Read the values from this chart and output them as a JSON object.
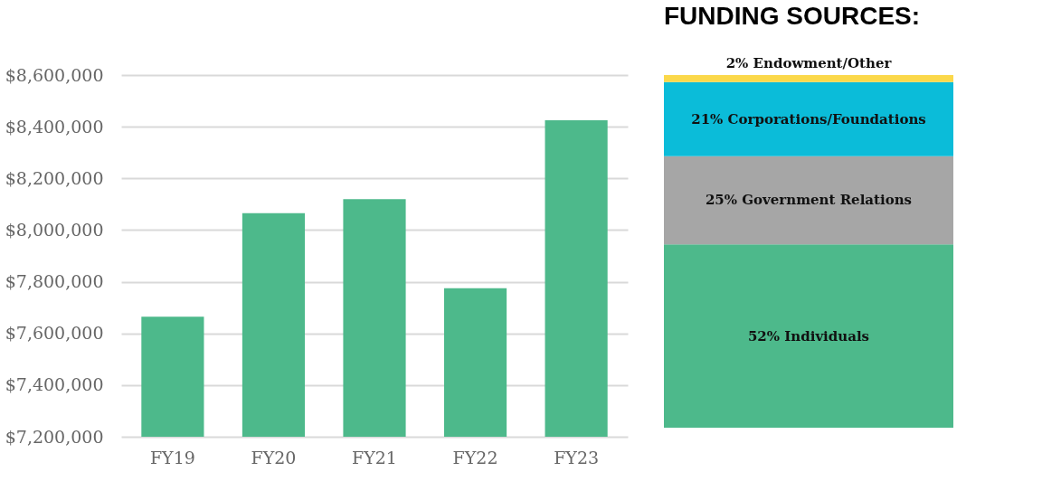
{
  "chart_data": [
    {
      "type": "bar",
      "categories": [
        "FY19",
        "FY20",
        "FY21",
        "FY22",
        "FY23"
      ],
      "values": [
        7665000,
        8065000,
        8120000,
        7775000,
        8425000
      ],
      "color": "#4db98b",
      "ylim": [
        7200000,
        8600000
      ],
      "yticks": [
        {
          "value": 7200000,
          "label": "$7,200,000"
        },
        {
          "value": 7400000,
          "label": "$7,400,000"
        },
        {
          "value": 7600000,
          "label": "$7,600,000"
        },
        {
          "value": 7800000,
          "label": "$7,800,000"
        },
        {
          "value": 8000000,
          "label": "$8,000,000"
        },
        {
          "value": 8200000,
          "label": "$8,200,000"
        },
        {
          "value": 8400000,
          "label": "$8,400,000"
        },
        {
          "value": 8600000,
          "label": "$8,600,000"
        }
      ],
      "grid": "y"
    },
    {
      "type": "bar",
      "title": "FUNDING SOURCES:",
      "stacked": true,
      "categories": [
        null
      ],
      "series": [
        {
          "color": "#4db98b",
          "values": [
            52
          ],
          "value_labels": [
            "52% Individuals"
          ]
        },
        {
          "color": "#a6a6a6",
          "values": [
            25
          ],
          "value_labels": [
            "25% Government Relations"
          ]
        },
        {
          "color": "#0bbcd9",
          "values": [
            21
          ],
          "value_labels": [
            "21% Corporations/Foundations"
          ]
        },
        {
          "color": "#fbd84a",
          "values": [
            2
          ],
          "value_labels": [
            "2% Endowment/Other"
          ]
        }
      ]
    }
  ]
}
